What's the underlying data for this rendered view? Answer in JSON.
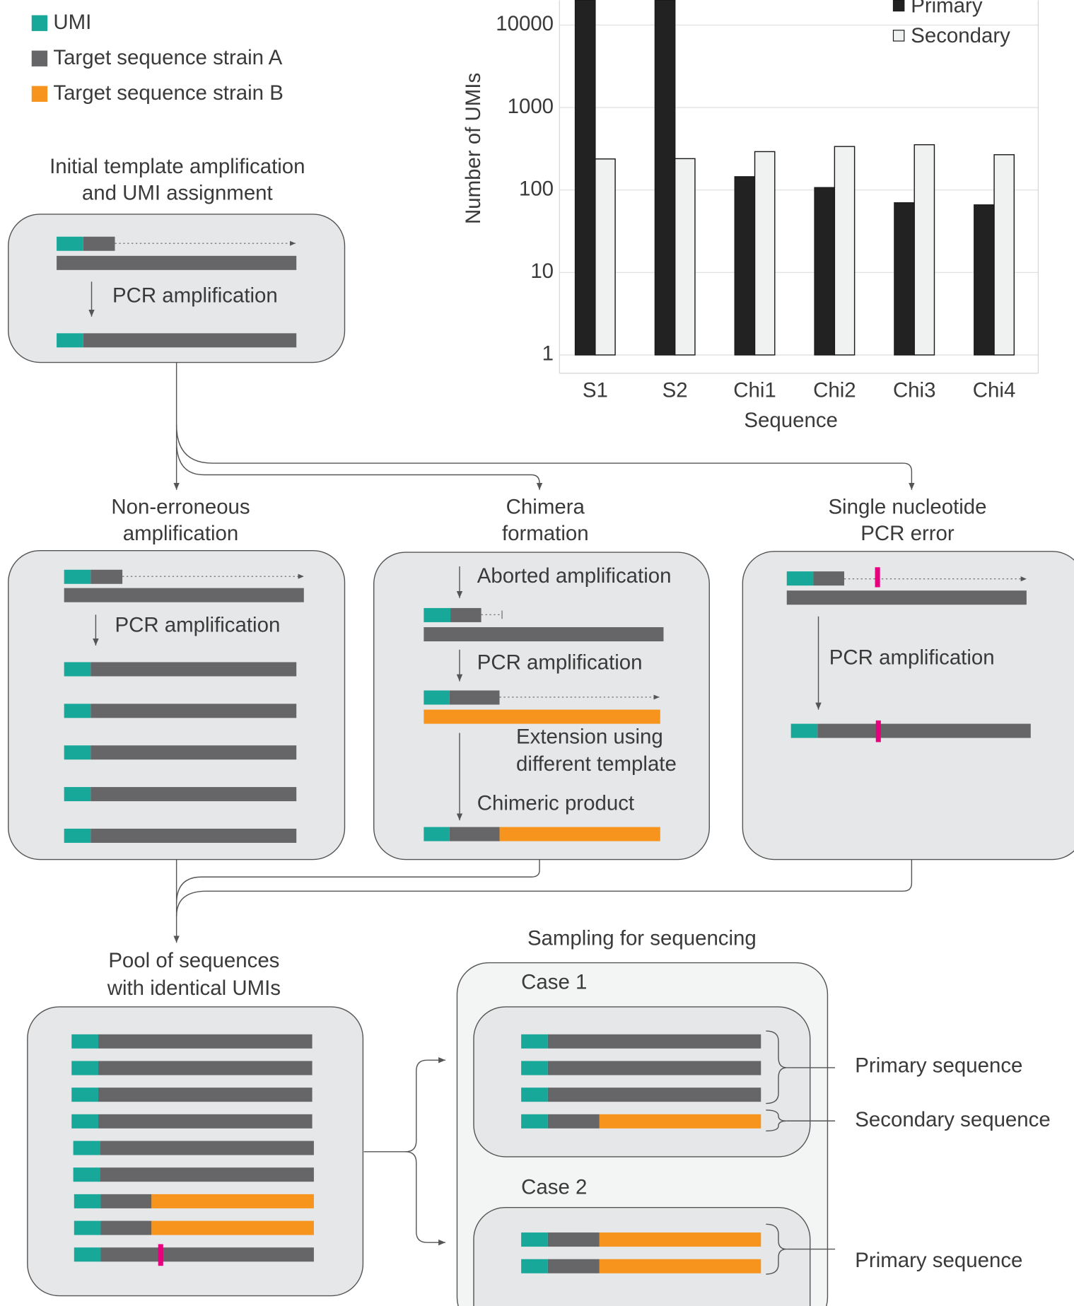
{
  "legend": [
    "UMI",
    "Target sequence strain A",
    "Target sequence strain B"
  ],
  "initial": {
    "title": [
      "Initial template amplification",
      "and UMI assignment"
    ],
    "step": "PCR amplification"
  },
  "non_erroneous": {
    "title": [
      "Non-erroneous",
      "amplification"
    ],
    "step": "PCR amplification"
  },
  "chimera": {
    "title": [
      "Chimera",
      "formation"
    ],
    "steps": [
      "Aborted amplification",
      "PCR amplification",
      "Extension using",
      "different template",
      "Chimeric product"
    ]
  },
  "single_error": {
    "title": [
      "Single nucleotide",
      "PCR error"
    ],
    "step": "PCR amplification"
  },
  "pool": {
    "title": [
      "Pool of sequences",
      "with identical UMIs"
    ]
  },
  "sampling": {
    "title": "Sampling for sequencing",
    "cases": [
      {
        "label": "Case 1",
        "labels": [
          "Primary sequence",
          "Secondary sequence"
        ]
      },
      {
        "label": "Case 2",
        "labels": [
          "Primary sequence"
        ]
      }
    ]
  },
  "chart_data": {
    "type": "bar",
    "x_label": "Sequence",
    "y_label": "Number of UMIs",
    "categories": [
      "S1",
      "S2",
      "Chi1",
      "Chi2",
      "Chi3",
      "Chi4"
    ],
    "series": [
      {
        "name": "Primary",
        "color": "#222222",
        "values": [
          20000,
          20000,
          145,
          107,
          70,
          66
        ]
      },
      {
        "name": "Secondary",
        "color": "#f0f1f1",
        "values": [
          238,
          240,
          292,
          337,
          354,
          268
        ]
      }
    ],
    "ylim": [
      0.6,
      20000
    ],
    "yticks": [
      1,
      10,
      100,
      1000,
      10000
    ],
    "log_scale": true,
    "grid": true,
    "legend": "top-right"
  }
}
